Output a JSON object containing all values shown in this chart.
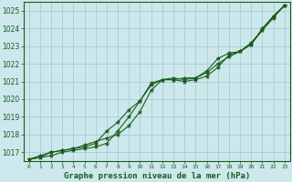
{
  "title": "Graphe pression niveau de la mer (hPa)",
  "bg_color": "#cde8ec",
  "grid_color": "#9fc8cc",
  "line_color": "#1a5c1a",
  "x_values": [
    0,
    1,
    2,
    3,
    4,
    5,
    6,
    7,
    8,
    9,
    10,
    11,
    12,
    13,
    14,
    15,
    16,
    17,
    18,
    19,
    20,
    21,
    22,
    23
  ],
  "line1": [
    1016.6,
    1016.8,
    1017.0,
    1017.1,
    1017.2,
    1017.4,
    1017.6,
    1017.8,
    1018.0,
    1018.5,
    1019.3,
    1020.5,
    1021.1,
    1021.1,
    1021.2,
    1021.2,
    1021.5,
    1022.0,
    1022.4,
    1022.7,
    1023.1,
    1023.9,
    1024.7,
    1025.3
  ],
  "line2": [
    1016.6,
    1016.7,
    1016.8,
    1017.0,
    1017.1,
    1017.2,
    1017.3,
    1017.5,
    1018.2,
    1019.0,
    1019.9,
    1020.9,
    1021.1,
    1021.1,
    1021.0,
    1021.1,
    1021.3,
    1021.8,
    1022.5,
    1022.7,
    1023.1,
    1024.0,
    1024.7,
    1025.3
  ],
  "line3": [
    1016.6,
    1016.7,
    1017.0,
    1017.1,
    1017.2,
    1017.3,
    1017.5,
    1018.2,
    1018.7,
    1019.4,
    1019.9,
    1020.8,
    1021.1,
    1021.2,
    1021.1,
    1021.2,
    1021.6,
    1022.3,
    1022.6,
    1022.7,
    1023.2,
    1023.9,
    1024.6,
    1025.3
  ],
  "ylim": [
    1016.5,
    1025.5
  ],
  "yticks": [
    1017,
    1018,
    1019,
    1020,
    1021,
    1022,
    1023,
    1024,
    1025
  ],
  "marker": "*",
  "markersize": 3.5
}
